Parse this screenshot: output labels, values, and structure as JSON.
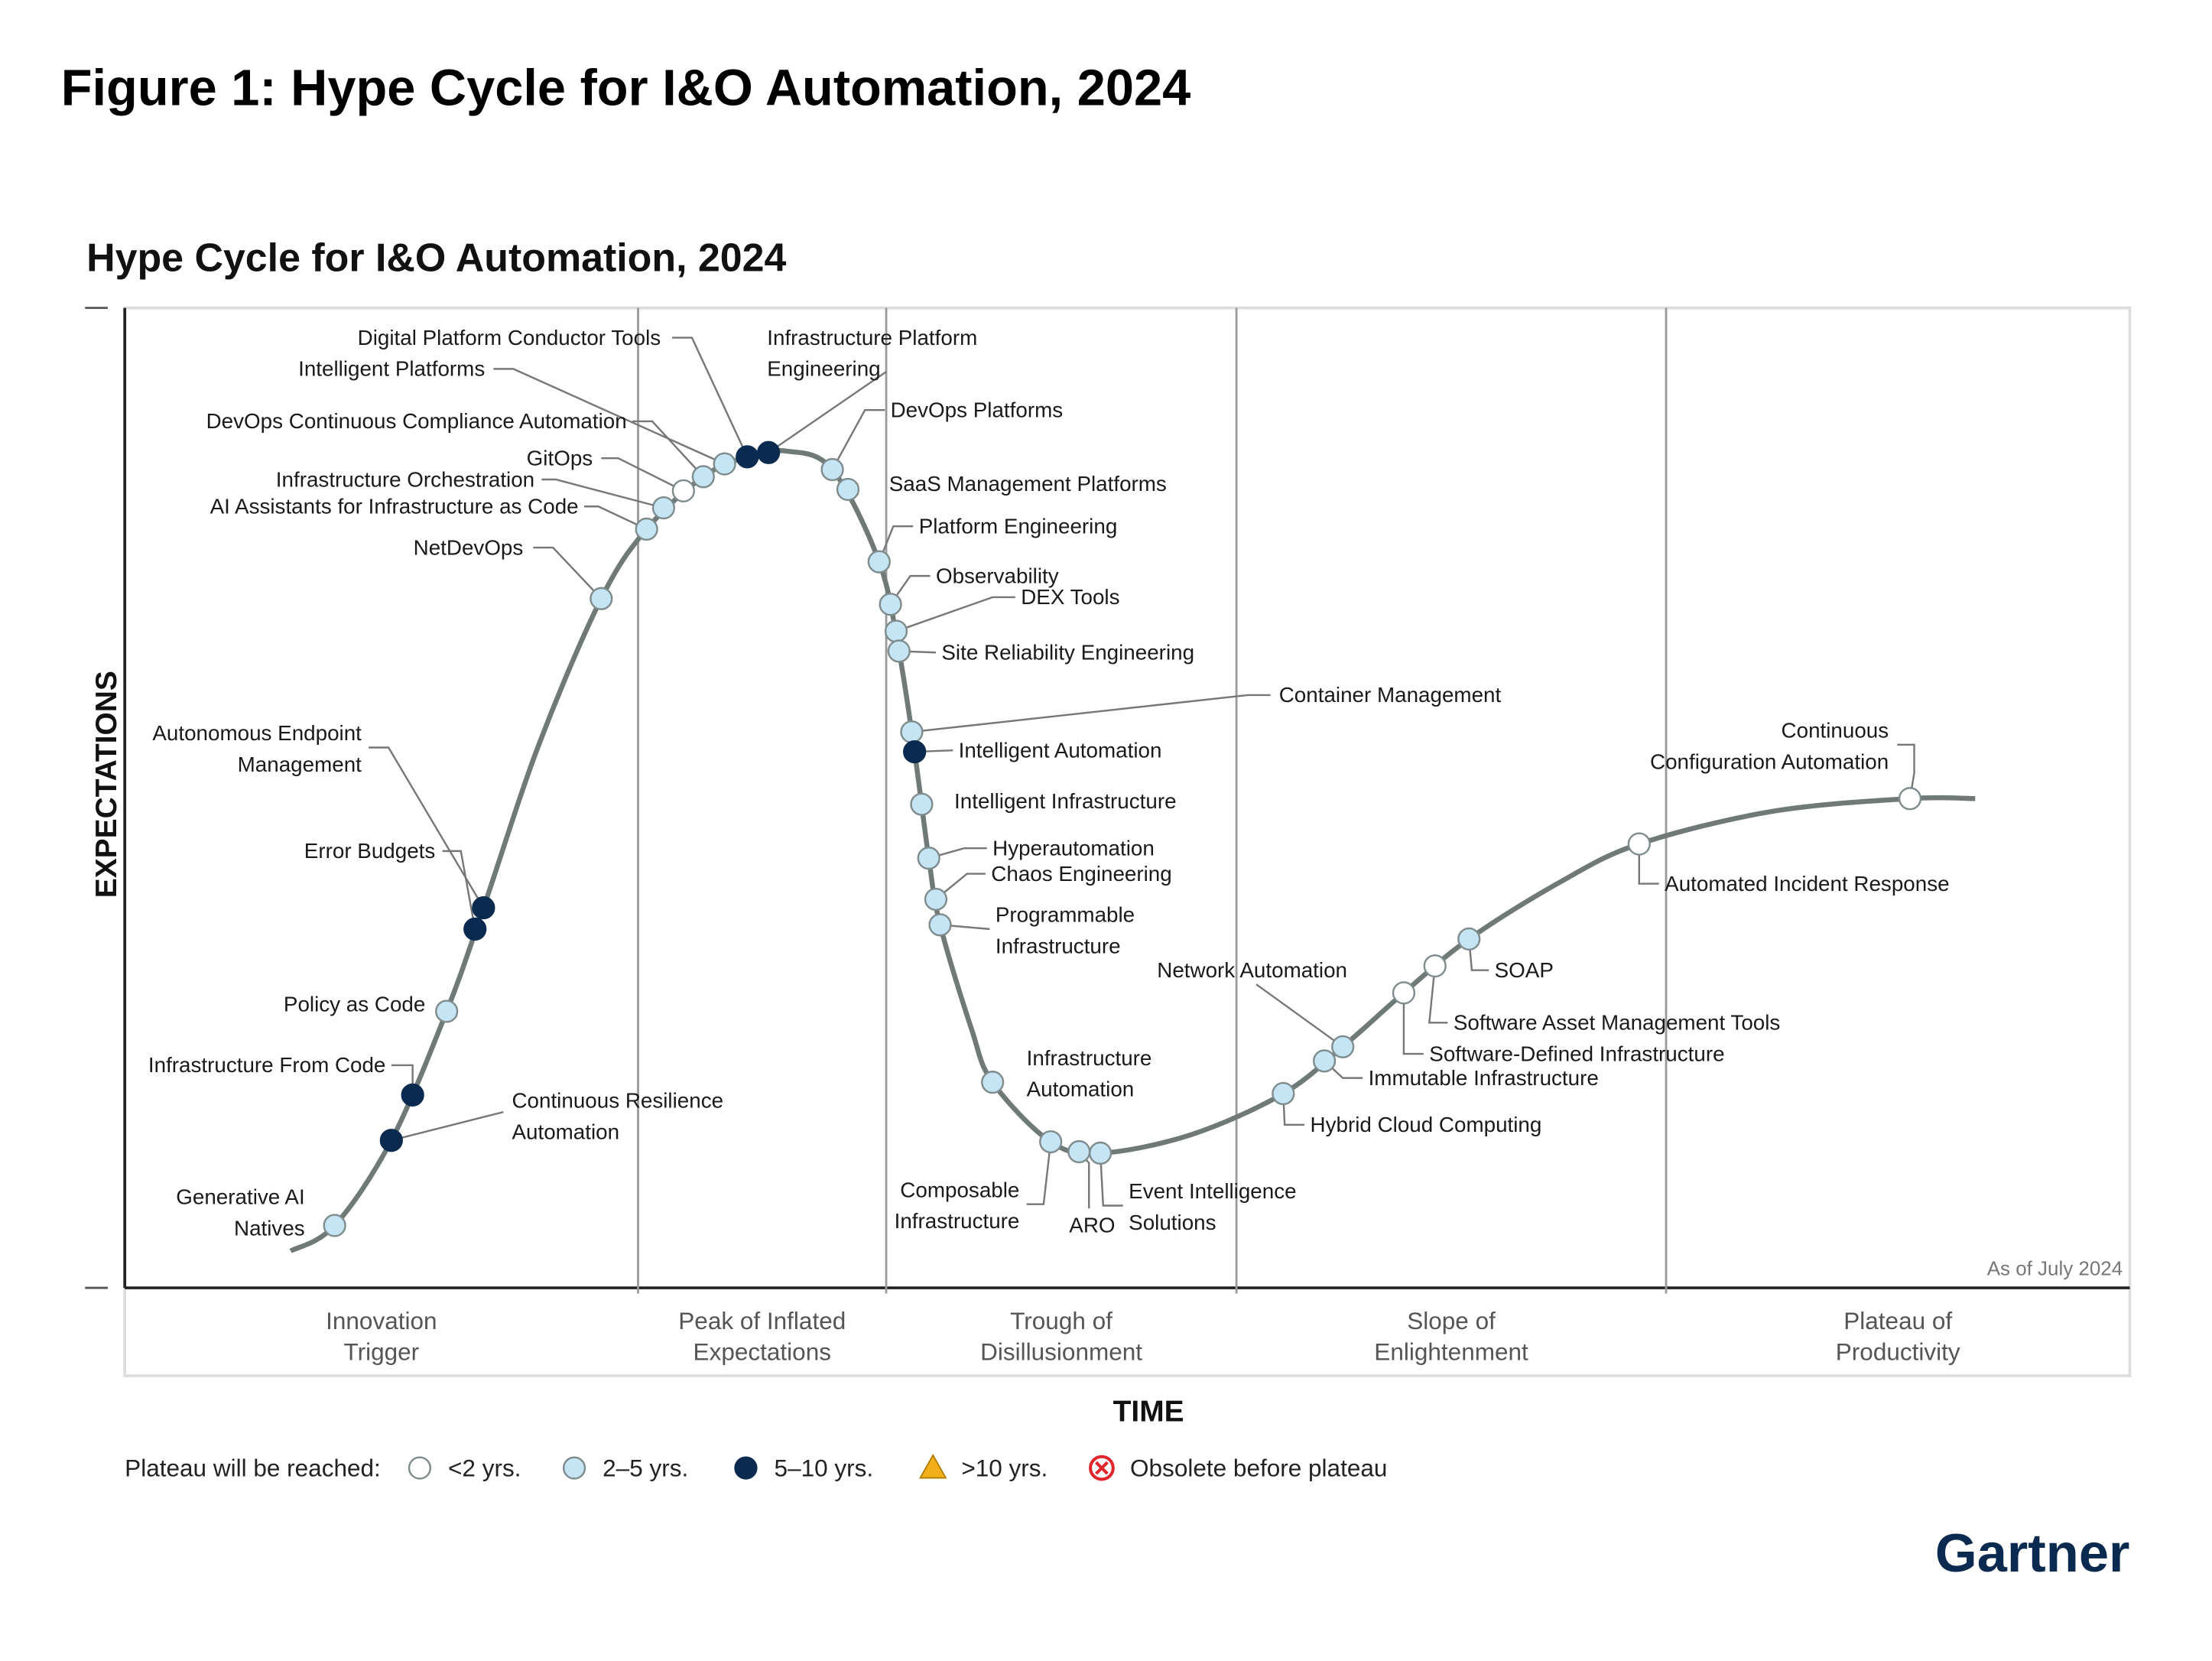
{
  "figure_title": "Figure 1: Hype Cycle for I&O Automation, 2024",
  "brand": "Gartner",
  "colors": {
    "lt2": "#ffffff",
    "y2to5": "#c6e5f4",
    "y5to10": "#0b2a4f",
    "gt10": "#f2b11b",
    "obsolete": "#e0262b",
    "curve": "#6f7a78"
  },
  "chart_data": {
    "type": "hype-cycle",
    "title": "Hype Cycle for I&O Automation, 2024",
    "xlabel": "TIME",
    "ylabel": "EXPECTATIONS",
    "annotation": "As of July 2024",
    "grid": false,
    "phases": [
      "Innovation Trigger",
      "Peak of Inflated Expectations",
      "Trough of Disillusionment",
      "Slope of Enlightenment",
      "Plateau of Productivity"
    ],
    "legend": {
      "title": "Plateau will be reached:",
      "placement": "bottom",
      "entries": [
        {
          "key": "lt2",
          "label": "<2 yrs."
        },
        {
          "key": "y2to5",
          "label": "2–5 yrs."
        },
        {
          "key": "y5to10",
          "label": "5–10 yrs."
        },
        {
          "key": "gt10",
          "label": ">10 yrs."
        },
        {
          "key": "obsolete",
          "label": "Obsolete before plateau"
        }
      ]
    },
    "points": [
      {
        "name": "Generative AI Natives",
        "plateau": "y2to5",
        "phase": "Innovation Trigger"
      },
      {
        "name": "Continuous Resilience Automation",
        "plateau": "y5to10",
        "phase": "Innovation Trigger"
      },
      {
        "name": "Infrastructure From Code",
        "plateau": "y5to10",
        "phase": "Innovation Trigger"
      },
      {
        "name": "Policy as Code",
        "plateau": "y2to5",
        "phase": "Innovation Trigger"
      },
      {
        "name": "Error Budgets",
        "plateau": "y5to10",
        "phase": "Innovation Trigger"
      },
      {
        "name": "Autonomous Endpoint Management",
        "plateau": "y5to10",
        "phase": "Innovation Trigger"
      },
      {
        "name": "NetDevOps",
        "plateau": "y2to5",
        "phase": "Innovation Trigger"
      },
      {
        "name": "AI Assistants for Infrastructure as Code",
        "plateau": "y2to5",
        "phase": "Peak of Inflated Expectations"
      },
      {
        "name": "Infrastructure Orchestration",
        "plateau": "y2to5",
        "phase": "Peak of Inflated Expectations"
      },
      {
        "name": "GitOps",
        "plateau": "lt2",
        "phase": "Peak of Inflated Expectations"
      },
      {
        "name": "DevOps Continuous Compliance Automation",
        "plateau": "y2to5",
        "phase": "Peak of Inflated Expectations"
      },
      {
        "name": "Intelligent Platforms",
        "plateau": "y2to5",
        "phase": "Peak of Inflated Expectations"
      },
      {
        "name": "Digital Platform Conductor Tools",
        "plateau": "y5to10",
        "phase": "Peak of Inflated Expectations"
      },
      {
        "name": "Infrastructure Platform Engineering",
        "plateau": "y5to10",
        "phase": "Peak of Inflated Expectations"
      },
      {
        "name": "DevOps Platforms",
        "plateau": "y2to5",
        "phase": "Peak of Inflated Expectations"
      },
      {
        "name": "SaaS Management Platforms",
        "plateau": "y2to5",
        "phase": "Peak of Inflated Expectations"
      },
      {
        "name": "Platform Engineering",
        "plateau": "y2to5",
        "phase": "Peak of Inflated Expectations"
      },
      {
        "name": "Observability",
        "plateau": "y2to5",
        "phase": "Trough of Disillusionment"
      },
      {
        "name": "DEX Tools",
        "plateau": "y2to5",
        "phase": "Trough of Disillusionment"
      },
      {
        "name": "Site Reliability Engineering",
        "plateau": "y2to5",
        "phase": "Trough of Disillusionment"
      },
      {
        "name": "Container Management",
        "plateau": "y2to5",
        "phase": "Trough of Disillusionment"
      },
      {
        "name": "Intelligent Automation",
        "plateau": "y5to10",
        "phase": "Trough of Disillusionment"
      },
      {
        "name": "Intelligent Infrastructure",
        "plateau": "y2to5",
        "phase": "Trough of Disillusionment"
      },
      {
        "name": "Hyperautomation",
        "plateau": "y2to5",
        "phase": "Trough of Disillusionment"
      },
      {
        "name": "Chaos Engineering",
        "plateau": "y2to5",
        "phase": "Trough of Disillusionment"
      },
      {
        "name": "Programmable Infrastructure",
        "plateau": "y2to5",
        "phase": "Trough of Disillusionment"
      },
      {
        "name": "Infrastructure Automation",
        "plateau": "y2to5",
        "phase": "Trough of Disillusionment"
      },
      {
        "name": "Composable Infrastructure",
        "plateau": "y2to5",
        "phase": "Trough of Disillusionment"
      },
      {
        "name": "ARO",
        "plateau": "y2to5",
        "phase": "Trough of Disillusionment"
      },
      {
        "name": "Event Intelligence Solutions",
        "plateau": "y2to5",
        "phase": "Trough of Disillusionment"
      },
      {
        "name": "Hybrid Cloud Computing",
        "plateau": "y2to5",
        "phase": "Slope of Enlightenment"
      },
      {
        "name": "Immutable Infrastructure",
        "plateau": "y2to5",
        "phase": "Slope of Enlightenment"
      },
      {
        "name": "Network Automation",
        "plateau": "y2to5",
        "phase": "Slope of Enlightenment"
      },
      {
        "name": "Software-Defined Infrastructure",
        "plateau": "lt2",
        "phase": "Slope of Enlightenment"
      },
      {
        "name": "Software Asset Management Tools",
        "plateau": "lt2",
        "phase": "Slope of Enlightenment"
      },
      {
        "name": "SOAP",
        "plateau": "y2to5",
        "phase": "Slope of Enlightenment"
      },
      {
        "name": "Automated Incident Response",
        "plateau": "lt2",
        "phase": "Slope of Enlightenment"
      },
      {
        "name": "Continuous Configuration Automation",
        "plateau": "lt2",
        "phase": "Plateau of Productivity"
      }
    ]
  }
}
